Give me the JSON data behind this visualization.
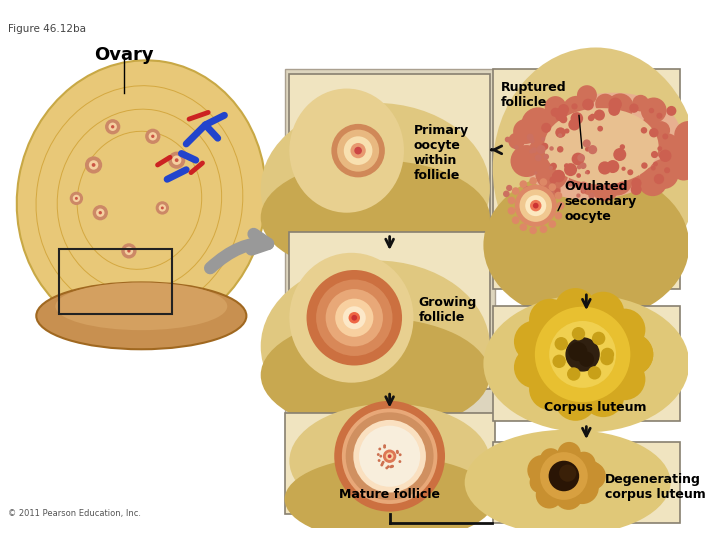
{
  "figure_label": "Figure 46.12ba",
  "title": "Ovary",
  "background_color": "#ffffff",
  "copyright": "© 2011 Pearson Education, Inc.",
  "labels": {
    "primary_follicle": "Primary\noocyte\nwithin\nfollicle",
    "growing_follicle": "Growing\nfollicle",
    "mature_follicle": "Mature follicle",
    "ruptured_follicle": "Ruptured\nfollicle",
    "ovulated": "Ovulated\nsecondary\noocyte",
    "corpus_luteum": "Corpus luteum",
    "degenerating": "Degenerating\ncorpus luteum"
  }
}
